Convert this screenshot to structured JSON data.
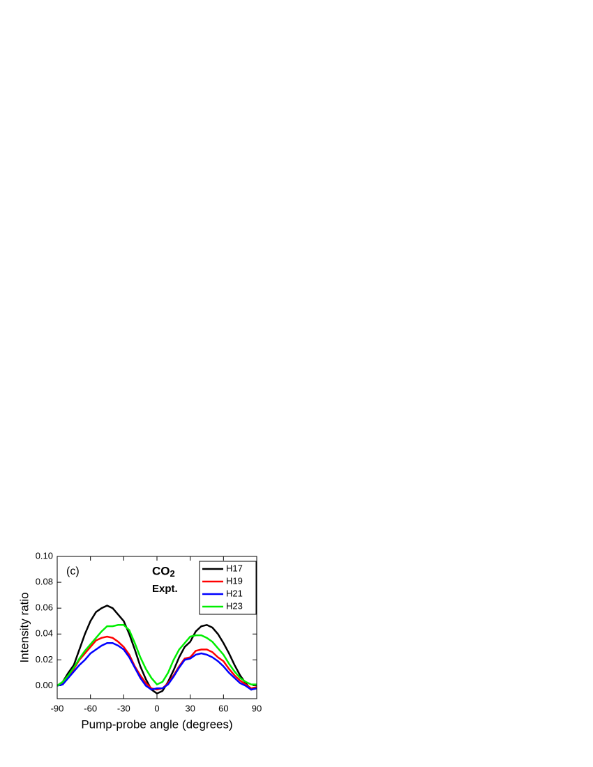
{
  "chart_data": {
    "type": "line",
    "x_label": "Pump-probe angle (degrees)",
    "y_label": "Intensity ratio",
    "annotations": [
      "(c)",
      "CO2",
      "Expt."
    ],
    "x": [
      -90,
      -85,
      -80,
      -75,
      -70,
      -65,
      -60,
      -55,
      -50,
      -45,
      -40,
      -35,
      -30,
      -25,
      -20,
      -15,
      -10,
      -5,
      0,
      5,
      10,
      15,
      20,
      25,
      30,
      35,
      40,
      45,
      50,
      55,
      60,
      65,
      70,
      75,
      80,
      85,
      90
    ],
    "series": [
      {
        "name": "H17",
        "color": "#000000",
        "values": [
          0,
          0.003,
          0.01,
          0.016,
          0.028,
          0.04,
          0.05,
          0.057,
          0.06,
          0.062,
          0.06,
          0.055,
          0.05,
          0.04,
          0.028,
          0.015,
          0.005,
          -0.003,
          -0.006,
          -0.004,
          0.003,
          0.012,
          0.022,
          0.03,
          0.034,
          0.042,
          0.046,
          0.047,
          0.045,
          0.04,
          0.033,
          0.025,
          0.016,
          0.008,
          0.002,
          -0.003,
          -0.002
        ]
      },
      {
        "name": "H19",
        "color": "#ff0000",
        "values": [
          0,
          0.002,
          0.007,
          0.013,
          0.02,
          0.025,
          0.03,
          0.035,
          0.037,
          0.038,
          0.037,
          0.034,
          0.03,
          0.024,
          0.015,
          0.008,
          0.002,
          -0.002,
          -0.003,
          -0.002,
          0.002,
          0.008,
          0.015,
          0.021,
          0.022,
          0.027,
          0.028,
          0.028,
          0.026,
          0.022,
          0.019,
          0.013,
          0.008,
          0.004,
          0.001,
          -0.002,
          -0.001
        ]
      },
      {
        "name": "H21",
        "color": "#0000ff",
        "values": [
          0,
          0.001,
          0.006,
          0.011,
          0.016,
          0.02,
          0.025,
          0.028,
          0.031,
          0.033,
          0.033,
          0.031,
          0.028,
          0.022,
          0.014,
          0.006,
          0,
          -0.003,
          -0.002,
          -0.002,
          0.001,
          0.007,
          0.014,
          0.02,
          0.021,
          0.024,
          0.025,
          0.024,
          0.022,
          0.019,
          0.015,
          0.01,
          0.006,
          0.002,
          0,
          -0.003,
          -0.002
        ]
      },
      {
        "name": "H23",
        "color": "#00ee00",
        "values": [
          0,
          0.003,
          0.008,
          0.014,
          0.021,
          0.027,
          0.032,
          0.037,
          0.042,
          0.046,
          0.046,
          0.047,
          0.047,
          0.043,
          0.033,
          0.022,
          0.013,
          0.006,
          0.001,
          0.003,
          0.01,
          0.02,
          0.028,
          0.033,
          0.038,
          0.039,
          0.039,
          0.037,
          0.034,
          0.029,
          0.024,
          0.017,
          0.011,
          0.006,
          0.003,
          0.001,
          0.001
        ]
      }
    ],
    "xlim": [
      -90,
      90
    ],
    "xticks": [
      -90,
      -60,
      -30,
      0,
      30,
      60,
      90
    ],
    "ylim": [
      -0.01,
      0.1
    ],
    "yticks": [
      {
        "value": 0,
        "label": "0.00"
      },
      {
        "value": 0.02,
        "label": "0.02"
      },
      {
        "value": 0.04,
        "label": "0.04"
      },
      {
        "value": 0.06,
        "label": "0.06"
      },
      {
        "value": 0.08,
        "label": "0.08"
      },
      {
        "value": 0.1,
        "label": "0.10"
      }
    ],
    "legend": "upper right"
  }
}
